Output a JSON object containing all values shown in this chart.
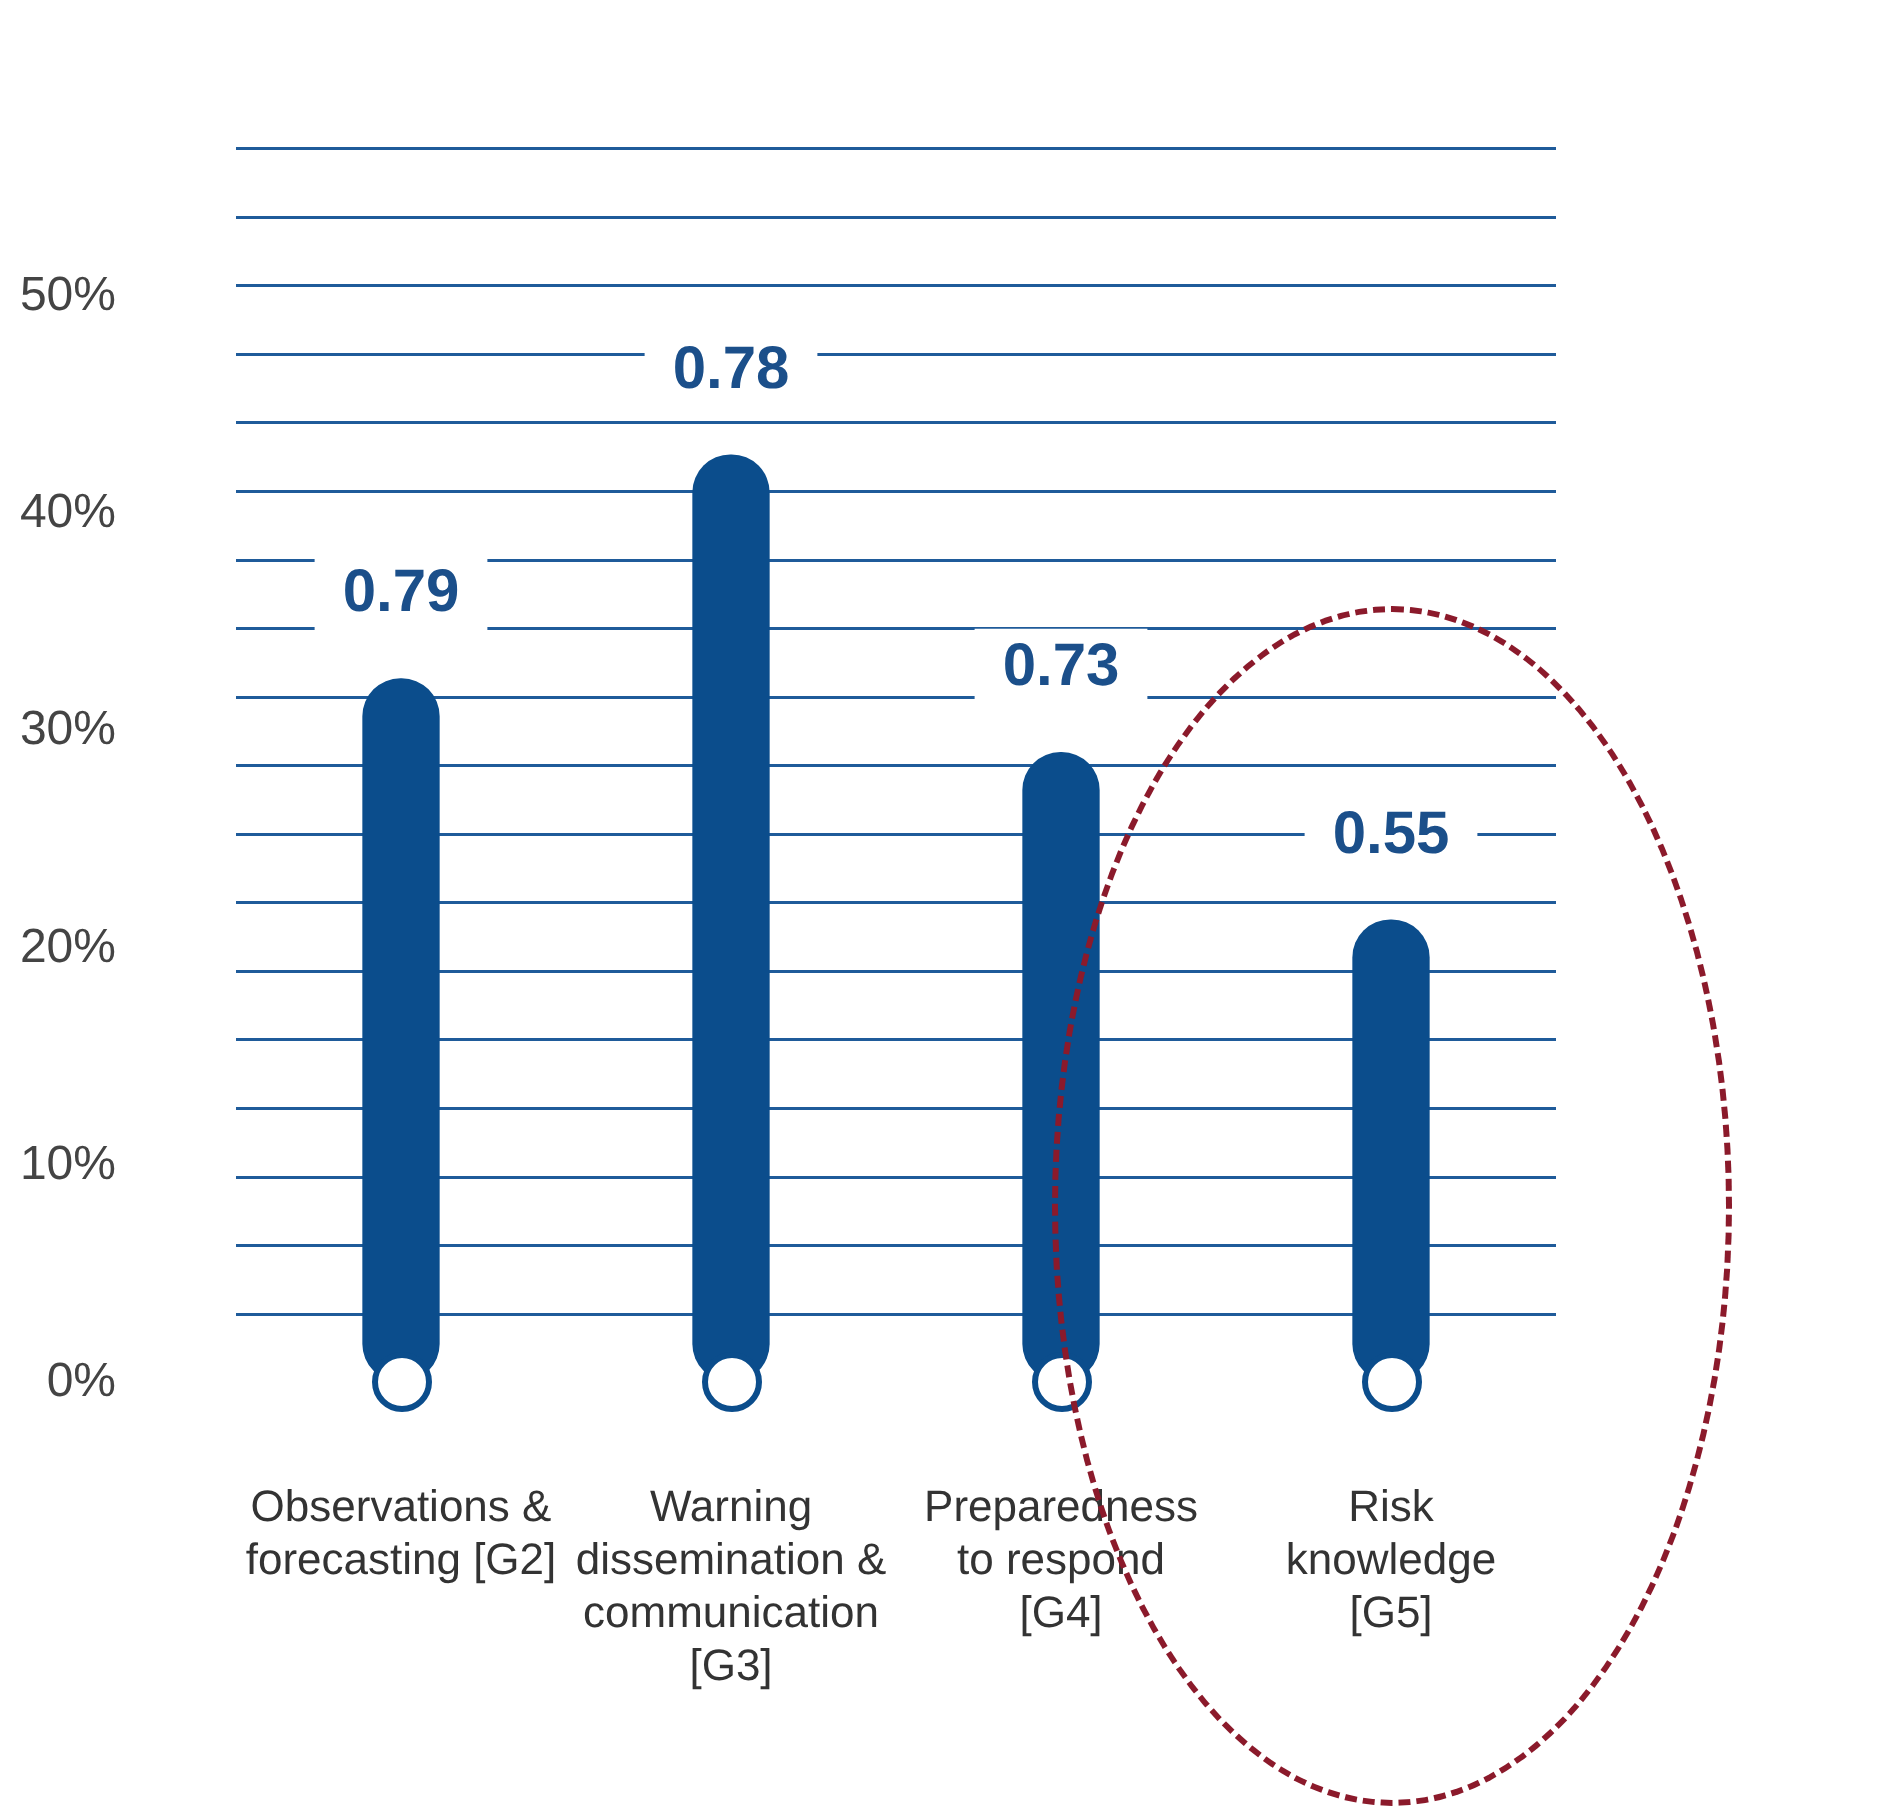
{
  "chart_data": {
    "type": "bar",
    "categories": [
      "Observations &\nforecasting [G2]",
      "Warning\ndissemination &\ncommunication\n[G3]",
      "Preparedness\nto respond\n[G4]",
      "Risk\nknowledge\n[G5]"
    ],
    "values": [
      32.4,
      42.7,
      29,
      21.3
    ],
    "color": "#0b4d8c",
    "ylim": [
      0,
      56.8
    ],
    "yticks": [
      {
        "value": 0,
        "label": "0%"
      },
      {
        "value": 10,
        "label": "10%"
      },
      {
        "value": 20,
        "label": "20%"
      },
      {
        "value": 30,
        "label": "30%"
      },
      {
        "value": 40,
        "label": "40%"
      },
      {
        "value": 50,
        "label": "50%"
      },
      {
        "value": 3.16,
        "label": null
      },
      {
        "value": 6.31,
        "label": null
      },
      {
        "value": 9.47,
        "label": null
      },
      {
        "value": 12.62,
        "label": null
      },
      {
        "value": 15.78,
        "label": null
      },
      {
        "value": 18.93,
        "label": null
      },
      {
        "value": 22.09,
        "label": null
      },
      {
        "value": 25.24,
        "label": null
      },
      {
        "value": 28.4,
        "label": null
      },
      {
        "value": 31.56,
        "label": null
      },
      {
        "value": 34.71,
        "label": null
      },
      {
        "value": 37.87,
        "label": null
      },
      {
        "value": 41.02,
        "label": null
      },
      {
        "value": 44.18,
        "label": null
      },
      {
        "value": 47.33,
        "label": null
      },
      {
        "value": 50.49,
        "label": null
      },
      {
        "value": 53.64,
        "label": null
      },
      {
        "value": 56.8,
        "label": null
      }
    ],
    "grid": "y",
    "annotations": [
      "0.79",
      "0.78",
      "0.73",
      "0.55"
    ]
  }
}
